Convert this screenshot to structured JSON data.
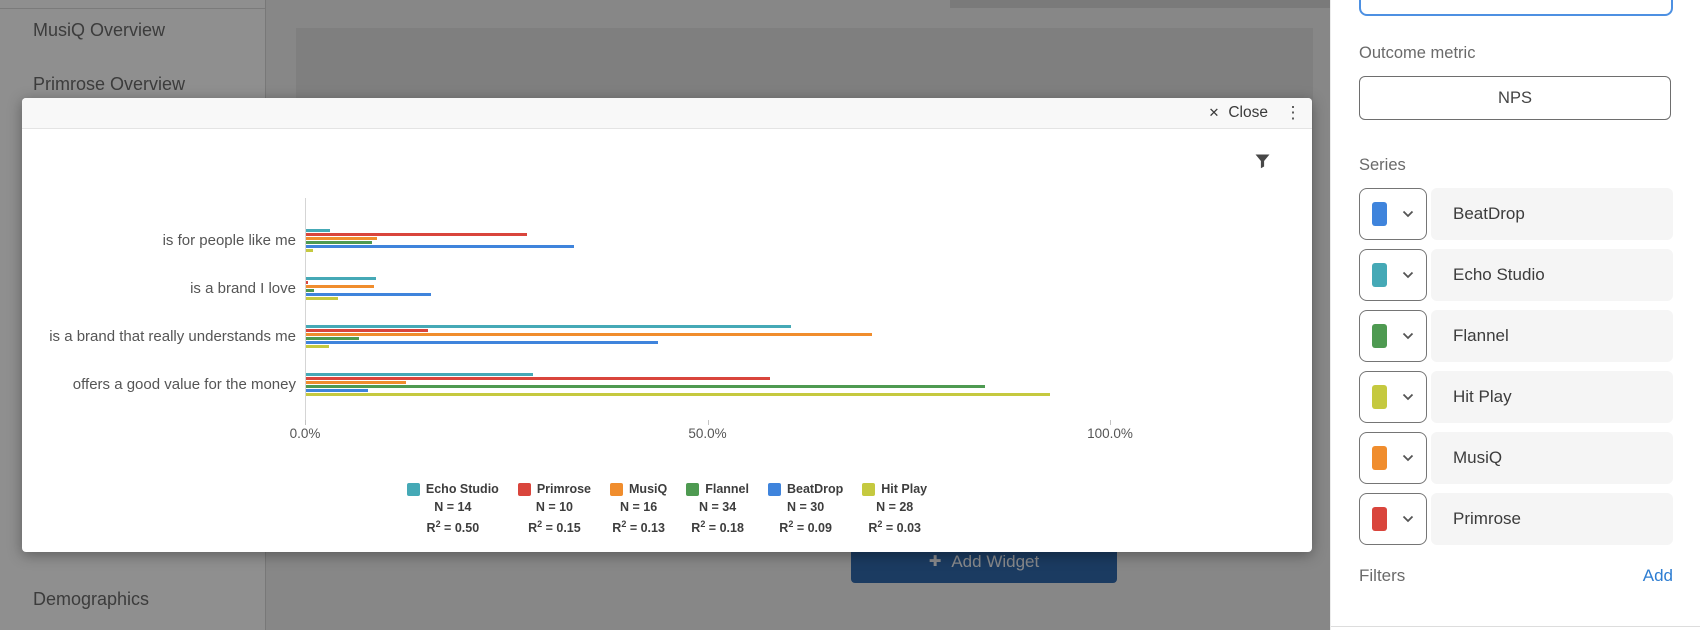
{
  "sidebar": {
    "items": [
      {
        "label": "MusiQ Overview"
      },
      {
        "label": "Primrose Overview"
      },
      {
        "label": "Demographics"
      }
    ]
  },
  "canvas": {
    "add_widget_label": "Add Widget"
  },
  "modal": {
    "close_label": "Close"
  },
  "icons": {
    "close": "✕",
    "kebab_menu": "⋮",
    "add_widget_plus": "✚",
    "filter_funnel": "funnel-shape",
    "series_chevron": "chevron-down"
  },
  "chart_data": {
    "type": "bar",
    "orientation": "horizontal",
    "title": "",
    "xlabel": "",
    "ylabel": "",
    "xlim": [
      0,
      100
    ],
    "x_tick_labels": [
      "0.0%",
      "50.0%",
      "100.0%"
    ],
    "x_tick_values": [
      0,
      50,
      100
    ],
    "grid": false,
    "legend_position": "bottom",
    "categories": [
      "is for people like me",
      "is a brand I love",
      "is a brand that really understands me",
      "offers a good value for the money"
    ],
    "series": [
      {
        "name": "Echo Studio",
        "color": "#45A9B6",
        "n_label": "N = 14",
        "r2_label": "R² = 0.50",
        "r2_base": "R",
        "r2_rest": " = 0.50",
        "values": [
          3.0,
          8.7,
          60.3,
          28.2
        ]
      },
      {
        "name": "Primrose",
        "color": "#D9453C",
        "n_label": "N = 10",
        "r2_label": "R² = 0.15",
        "r2_base": "R",
        "r2_rest": " = 0.15",
        "values": [
          27.5,
          0.3,
          15.1,
          57.6
        ]
      },
      {
        "name": "MusiQ",
        "color": "#F08D2D",
        "n_label": "N = 16",
        "r2_label": "R² = 0.13",
        "r2_base": "R",
        "r2_rest": " = 0.13",
        "values": [
          8.8,
          8.4,
          70.3,
          12.4
        ]
      },
      {
        "name": "Flannel",
        "color": "#4E9A51",
        "n_label": "N = 34",
        "r2_label": "R² = 0.18",
        "r2_base": "R",
        "r2_rest": " = 0.18",
        "values": [
          8.2,
          1.0,
          6.6,
          84.3
        ]
      },
      {
        "name": "BeatDrop",
        "color": "#3F84DC",
        "n_label": "N = 30",
        "r2_label": "R² = 0.09",
        "r2_base": "R",
        "r2_rest": " = 0.09",
        "values": [
          33.3,
          15.5,
          43.7,
          7.7
        ]
      },
      {
        "name": "Hit Play",
        "color": "#C5C93F",
        "n_label": "N = 28",
        "r2_label": "R² = 0.03",
        "r2_base": "R",
        "r2_rest": " = 0.03",
        "values": [
          0.9,
          4.0,
          2.8,
          92.4
        ]
      }
    ]
  },
  "panel": {
    "outcome_metric_label": "Outcome metric",
    "outcome_metric_value": "NPS",
    "series_label": "Series",
    "series": [
      {
        "name": "BeatDrop",
        "color": "#3F84DC"
      },
      {
        "name": "Echo Studio",
        "color": "#45A9B6"
      },
      {
        "name": "Flannel",
        "color": "#4E9A51"
      },
      {
        "name": "Hit Play",
        "color": "#C5C93F"
      },
      {
        "name": "MusiQ",
        "color": "#F08D2D"
      },
      {
        "name": "Primrose",
        "color": "#D9453C"
      }
    ],
    "filters_label": "Filters",
    "add_link": "Add"
  }
}
